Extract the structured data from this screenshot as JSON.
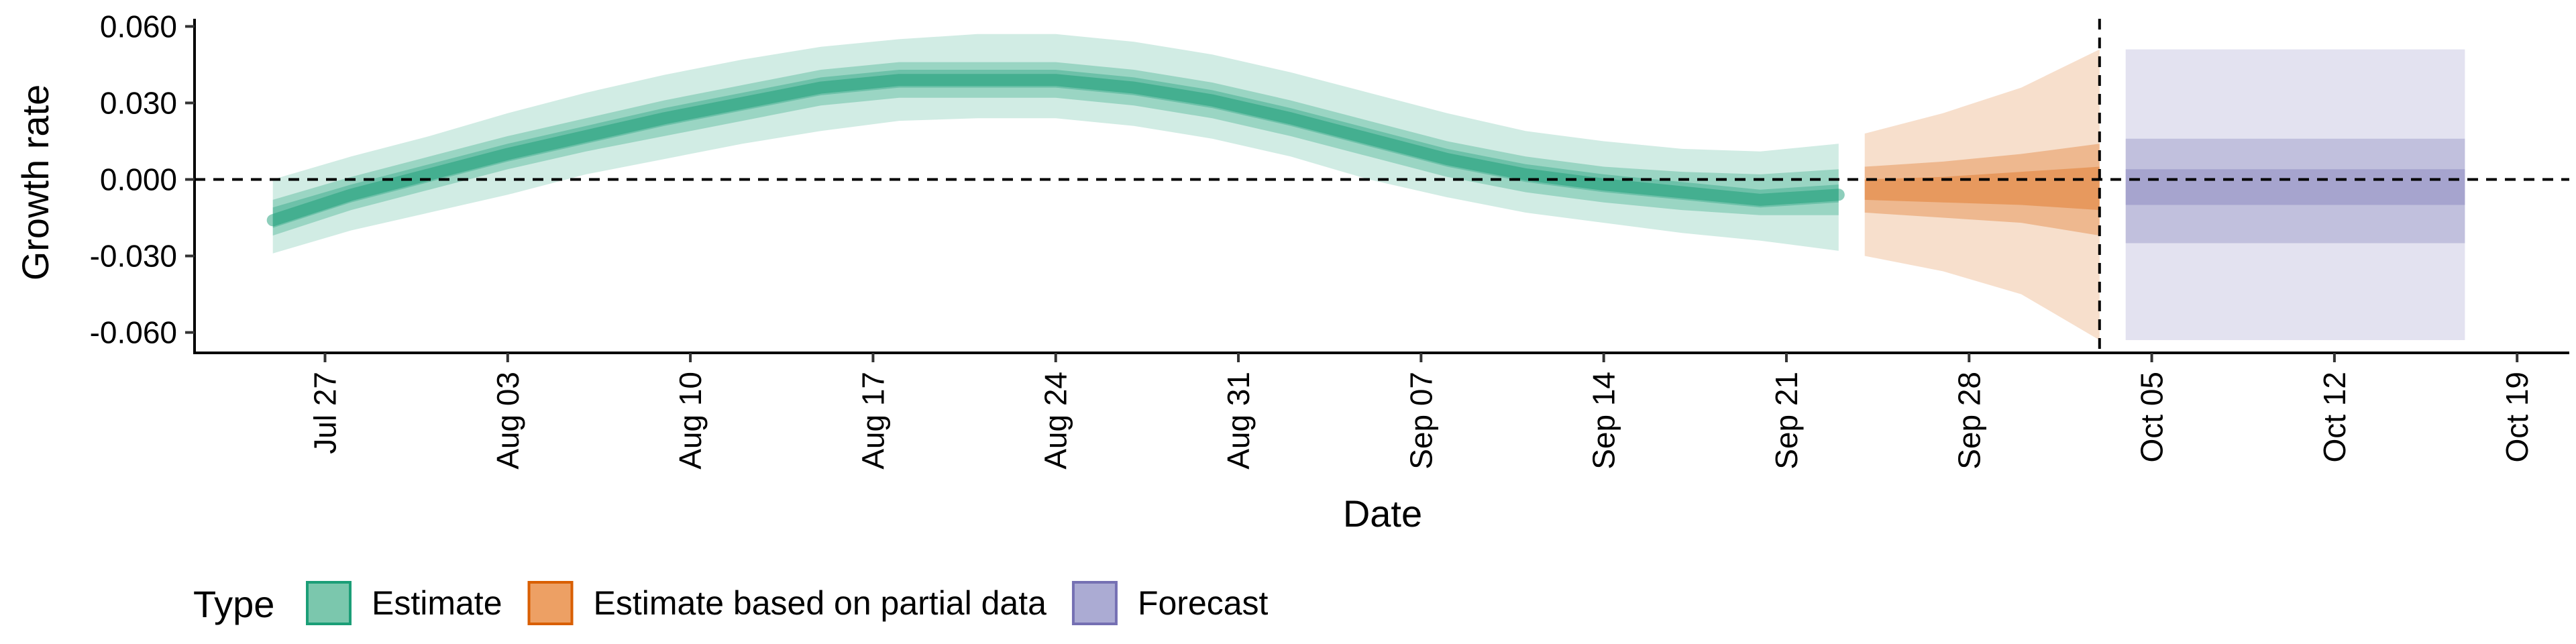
{
  "chart_data": {
    "type": "area",
    "title": "",
    "xlabel": "Date",
    "ylabel": "Growth rate",
    "x_type": "date",
    "xlim": [
      "2020-07-22",
      "2020-10-21"
    ],
    "ylim": [
      -0.068,
      0.063
    ],
    "x_ticks": [
      {
        "date": "2020-07-27",
        "label": "Jul 27"
      },
      {
        "date": "2020-08-03",
        "label": "Aug 03"
      },
      {
        "date": "2020-08-10",
        "label": "Aug 10"
      },
      {
        "date": "2020-08-17",
        "label": "Aug 17"
      },
      {
        "date": "2020-08-24",
        "label": "Aug 24"
      },
      {
        "date": "2020-08-31",
        "label": "Aug 31"
      },
      {
        "date": "2020-09-07",
        "label": "Sep 07"
      },
      {
        "date": "2020-09-14",
        "label": "Sep 14"
      },
      {
        "date": "2020-09-21",
        "label": "Sep 21"
      },
      {
        "date": "2020-09-28",
        "label": "Sep 28"
      },
      {
        "date": "2020-10-05",
        "label": "Oct 05"
      },
      {
        "date": "2020-10-12",
        "label": "Oct 12"
      },
      {
        "date": "2020-10-19",
        "label": "Oct 19"
      }
    ],
    "y_ticks": [
      {
        "value": 0.06,
        "label": "0.060"
      },
      {
        "value": 0.03,
        "label": "0.030"
      },
      {
        "value": 0.0,
        "label": "0.000"
      },
      {
        "value": -0.03,
        "label": "-0.030"
      },
      {
        "value": -0.06,
        "label": "-0.060"
      }
    ],
    "reference_lines": [
      {
        "axis": "y",
        "value": 0.0,
        "style": "dashed"
      },
      {
        "axis": "x",
        "value": "2020-10-03",
        "style": "dashed"
      }
    ],
    "grid": false,
    "legend": {
      "title": "Type",
      "position": "bottom-left",
      "entries": [
        {
          "label": "Estimate",
          "color": "#7bc7ad",
          "border": "#1b9e77"
        },
        {
          "label": "Estimate based on partial data",
          "color": "#eda064",
          "border": "#d95f02"
        },
        {
          "label": "Forecast",
          "color": "#ababd3",
          "border": "#7570b3"
        }
      ]
    },
    "series": [
      {
        "name": "Estimate",
        "color": "#1b9e77",
        "points": [
          {
            "x": "2020-07-25",
            "median": -0.016,
            "l20": -0.019,
            "u20": -0.011,
            "l50": -0.022,
            "u50": -0.008,
            "l90": -0.029,
            "u90": 0.0
          },
          {
            "x": "2020-07-28",
            "median": -0.006,
            "l20": -0.009,
            "u20": -0.002,
            "l50": -0.012,
            "u50": 0.001,
            "l90": -0.02,
            "u90": 0.009
          },
          {
            "x": "2020-07-31",
            "median": 0.002,
            "l20": -0.001,
            "u20": 0.006,
            "l50": -0.004,
            "u50": 0.009,
            "l90": -0.013,
            "u90": 0.017
          },
          {
            "x": "2020-08-03",
            "median": 0.01,
            "l20": 0.007,
            "u20": 0.014,
            "l50": 0.004,
            "u50": 0.017,
            "l90": -0.006,
            "u90": 0.026
          },
          {
            "x": "2020-08-06",
            "median": 0.017,
            "l20": 0.014,
            "u20": 0.021,
            "l50": 0.011,
            "u50": 0.024,
            "l90": 0.002,
            "u90": 0.034
          },
          {
            "x": "2020-08-09",
            "median": 0.024,
            "l20": 0.021,
            "u20": 0.028,
            "l50": 0.017,
            "u50": 0.031,
            "l90": 0.008,
            "u90": 0.041
          },
          {
            "x": "2020-08-12",
            "median": 0.03,
            "l20": 0.027,
            "u20": 0.034,
            "l50": 0.023,
            "u50": 0.037,
            "l90": 0.014,
            "u90": 0.047
          },
          {
            "x": "2020-08-15",
            "median": 0.036,
            "l20": 0.033,
            "u20": 0.04,
            "l50": 0.029,
            "u50": 0.043,
            "l90": 0.019,
            "u90": 0.052
          },
          {
            "x": "2020-08-18",
            "median": 0.039,
            "l20": 0.036,
            "u20": 0.043,
            "l50": 0.032,
            "u50": 0.046,
            "l90": 0.023,
            "u90": 0.055
          },
          {
            "x": "2020-08-21",
            "median": 0.039,
            "l20": 0.036,
            "u20": 0.043,
            "l50": 0.032,
            "u50": 0.046,
            "l90": 0.024,
            "u90": 0.057
          },
          {
            "x": "2020-08-24",
            "median": 0.039,
            "l20": 0.036,
            "u20": 0.043,
            "l50": 0.032,
            "u50": 0.046,
            "l90": 0.024,
            "u90": 0.057
          },
          {
            "x": "2020-08-27",
            "median": 0.036,
            "l20": 0.033,
            "u20": 0.04,
            "l50": 0.029,
            "u50": 0.043,
            "l90": 0.021,
            "u90": 0.054
          },
          {
            "x": "2020-08-30",
            "median": 0.031,
            "l20": 0.028,
            "u20": 0.035,
            "l50": 0.024,
            "u50": 0.038,
            "l90": 0.016,
            "u90": 0.049
          },
          {
            "x": "2020-09-02",
            "median": 0.024,
            "l20": 0.021,
            "u20": 0.028,
            "l50": 0.017,
            "u50": 0.031,
            "l90": 0.009,
            "u90": 0.042
          },
          {
            "x": "2020-09-05",
            "median": 0.016,
            "l20": 0.013,
            "u20": 0.02,
            "l50": 0.009,
            "u50": 0.023,
            "l90": 0.0,
            "u90": 0.034
          },
          {
            "x": "2020-09-08",
            "median": 0.008,
            "l20": 0.005,
            "u20": 0.012,
            "l50": 0.001,
            "u50": 0.015,
            "l90": -0.007,
            "u90": 0.026
          },
          {
            "x": "2020-09-11",
            "median": 0.002,
            "l20": -0.001,
            "u20": 0.006,
            "l50": -0.005,
            "u50": 0.009,
            "l90": -0.013,
            "u90": 0.019
          },
          {
            "x": "2020-09-14",
            "median": -0.002,
            "l20": -0.005,
            "u20": 0.002,
            "l50": -0.009,
            "u50": 0.005,
            "l90": -0.017,
            "u90": 0.015
          },
          {
            "x": "2020-09-17",
            "median": -0.005,
            "l20": -0.008,
            "u20": -0.001,
            "l50": -0.012,
            "u50": 0.003,
            "l90": -0.021,
            "u90": 0.012
          },
          {
            "x": "2020-09-20",
            "median": -0.008,
            "l20": -0.011,
            "u20": -0.004,
            "l50": -0.014,
            "u50": 0.002,
            "l90": -0.024,
            "u90": 0.011
          },
          {
            "x": "2020-09-23",
            "median": -0.006,
            "l20": -0.009,
            "u20": -0.002,
            "l50": -0.014,
            "u50": 0.004,
            "l90": -0.028,
            "u90": 0.014
          }
        ]
      },
      {
        "name": "Estimate based on partial data",
        "color": "#d95f02",
        "points": [
          {
            "x": "2020-09-24",
            "median": -0.004,
            "l20": -0.008,
            "u20": 0.0,
            "l50": -0.013,
            "u50": 0.005,
            "l90": -0.03,
            "u90": 0.018
          },
          {
            "x": "2020-09-27",
            "median": -0.004,
            "l20": -0.009,
            "u20": 0.001,
            "l50": -0.015,
            "u50": 0.007,
            "l90": -0.036,
            "u90": 0.026
          },
          {
            "x": "2020-09-30",
            "median": -0.004,
            "l20": -0.01,
            "u20": 0.003,
            "l50": -0.017,
            "u50": 0.01,
            "l90": -0.045,
            "u90": 0.036
          },
          {
            "x": "2020-10-03",
            "median": -0.004,
            "l20": -0.012,
            "u20": 0.005,
            "l50": -0.022,
            "u50": 0.014,
            "l90": -0.063,
            "u90": 0.051
          }
        ]
      },
      {
        "name": "Forecast",
        "color": "#7570b3",
        "points": [
          {
            "x": "2020-10-04",
            "median": -0.003,
            "l20": -0.01,
            "u20": 0.004,
            "l50": -0.025,
            "u50": 0.016,
            "l90": -0.063,
            "u90": 0.051
          },
          {
            "x": "2020-10-17",
            "median": -0.003,
            "l20": -0.01,
            "u20": 0.004,
            "l50": -0.025,
            "u50": 0.016,
            "l90": -0.063,
            "u90": 0.051
          }
        ]
      }
    ]
  }
}
